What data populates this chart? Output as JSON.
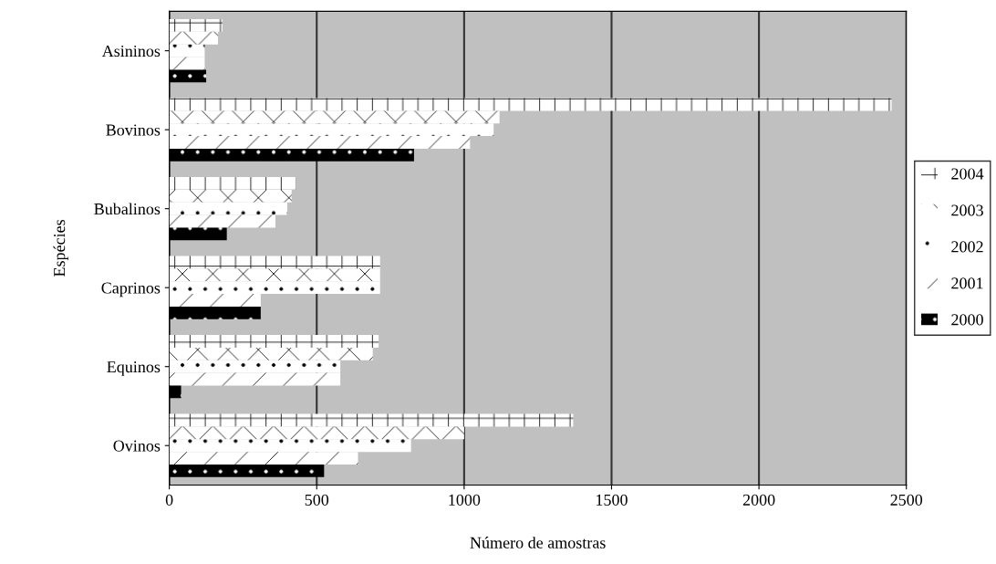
{
  "chart_data": {
    "type": "bar",
    "orientation": "horizontal",
    "xlabel": "Número de amostras",
    "ylabel": "Espécies",
    "categories": [
      "Asininos",
      "Bovinos",
      "Bubalinos",
      "Caprinos",
      "Equinos",
      "Ovinos"
    ],
    "series": [
      {
        "name": "2004",
        "color": "#ffffff",
        "values": [
          180,
          2450,
          430,
          715,
          710,
          1370
        ]
      },
      {
        "name": "2003",
        "color": "#ffffff",
        "values": [
          165,
          1120,
          415,
          715,
          690,
          1000
        ]
      },
      {
        "name": "2002",
        "color": "#ffffff",
        "values": [
          120,
          1100,
          400,
          715,
          580,
          820
        ]
      },
      {
        "name": "2001",
        "color": "#ffffff",
        "values": [
          120,
          1020,
          360,
          310,
          580,
          640
        ]
      },
      {
        "name": "2000",
        "color": "#000000",
        "values": [
          125,
          830,
          195,
          310,
          40,
          525
        ]
      }
    ],
    "xlim": [
      0,
      2500
    ],
    "xticks": [
      0,
      500,
      1000,
      1500,
      2000,
      2500
    ],
    "grid": "x",
    "legend": "right"
  }
}
